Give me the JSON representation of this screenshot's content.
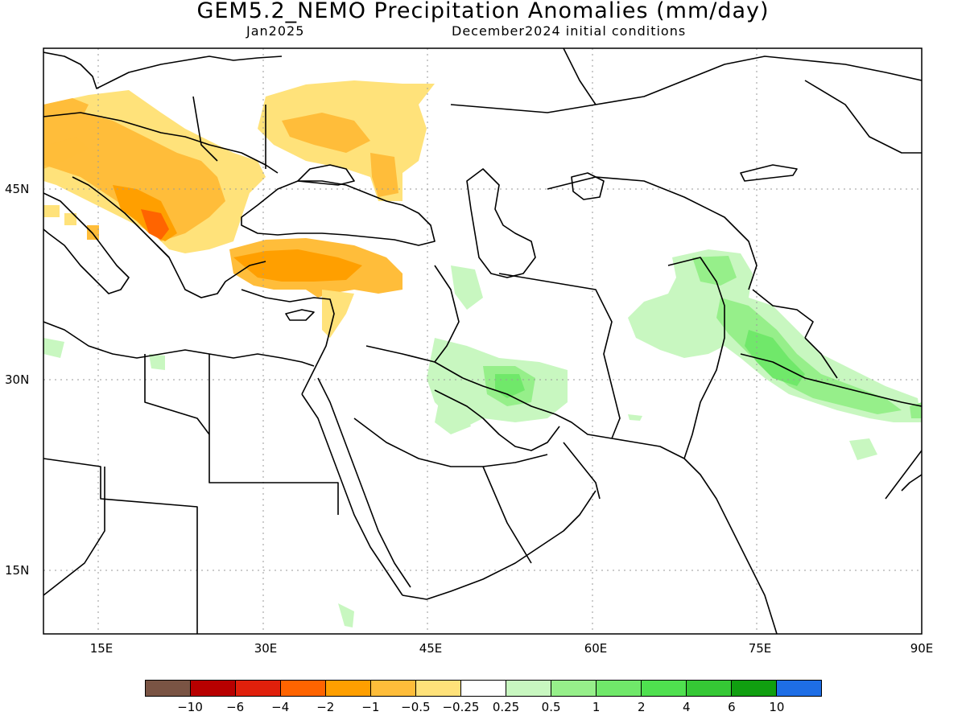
{
  "header": {
    "title": "GEM5.2_NEMO Precipitation Anomalies (mm/day)",
    "valid_month": "Jan2025",
    "initial_conditions": "December2024 initial conditions"
  },
  "map": {
    "lat_labels": [
      "45N",
      "30N",
      "15N"
    ],
    "lon_labels": [
      "15E",
      "30E",
      "45E",
      "60E",
      "75E",
      "90E"
    ],
    "lon_range": [
      10,
      90
    ],
    "lat_range": [
      10,
      55
    ],
    "gridlines": "dotted"
  },
  "regions": {
    "dry_anomalies": [
      "Central Europe / Balkans",
      "Ukraine / Southern Russia",
      "Anatolia (Turkey)",
      "Southern Levant"
    ],
    "wet_anomalies": [
      "Iran / Persian Gulf",
      "Afghanistan / Pakistan",
      "Himalaya / Nepal",
      "North-central Saudi Arabia"
    ]
  },
  "colorbar": {
    "colors": [
      "#7a5444",
      "#b80000",
      "#e0200b",
      "#ff6400",
      "#ff9f00",
      "#ffbd3a",
      "#ffe27a",
      "#ffffff",
      "#c8f7c0",
      "#96ef8a",
      "#70e86a",
      "#4fe04f",
      "#35c835",
      "#109f10",
      "#1e6ee6"
    ],
    "labels": [
      "−10",
      "−6",
      "−4",
      "−2",
      "−1",
      "−0.5",
      "−0.25",
      "0.25",
      "0.5",
      "1",
      "2",
      "4",
      "6",
      "10"
    ]
  }
}
